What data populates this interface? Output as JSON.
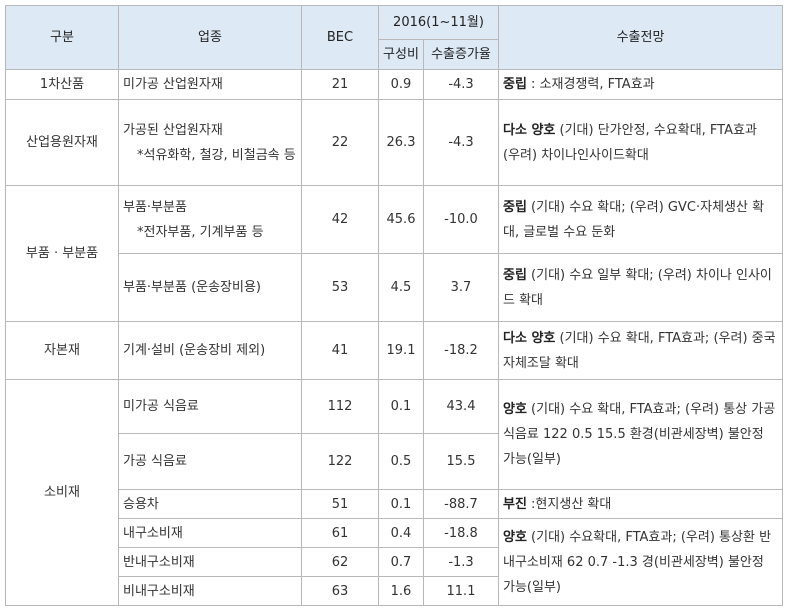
{
  "header": {
    "category": "구분",
    "industry": "업종",
    "bec": "BEC",
    "period": "2016(1~11월)",
    "share": "구성비",
    "growth": "수출증가율",
    "outlook": "수출전망"
  },
  "rows": [
    {
      "cat": "1차산품",
      "ind": "미가공 산업원자재",
      "sub": "",
      "bec": "21",
      "share": "0.9",
      "growth": "-4.3",
      "ob": "중립",
      "ot": " : 소재경쟁력, FTA효과"
    },
    {
      "cat": "산업용원자재",
      "ind": "가공된 산업원자재",
      "sub": "*석유화학, 철강, 비철금속 등",
      "bec": "22",
      "share": "26.3",
      "growth": "-4.3",
      "ob": "다소 양호",
      "ot": " (기대) 단가안정, 수요확대, FTA효과 (우려) 차이나인사이드확대"
    },
    {
      "cat": "부품 · 부분품",
      "ind": "부품·부분품",
      "sub": "*전자부품, 기계부품 등",
      "bec": "42",
      "share": "45.6",
      "growth": "-10.0",
      "ob": "중립",
      "ot": " (기대) 수요 확대; (우려) GVC·자체생산 확대, 글로벌 수요 둔화"
    },
    {
      "cat": "",
      "ind": "부품·부분품 (운송장비용)",
      "sub": "",
      "bec": "53",
      "share": "4.5",
      "growth": "3.7",
      "ob": "중립",
      "ot": " (기대) 수요 일부 확대; (우려) 차이나 인사이드 확대"
    },
    {
      "cat": "자본재",
      "ind": "기계·설비 (운송장비 제외)",
      "sub": "",
      "bec": "41",
      "share": "19.1",
      "growth": "-18.2",
      "ob": "다소 양호",
      "ot": " (기대) 수요 확대, FTA효과; (우려) 중국 자체조달 확대"
    },
    {
      "cat": "소비재",
      "ind": "미가공 식음료",
      "sub": "",
      "bec": "112",
      "share": "0.1",
      "growth": "43.4",
      "ob": "양호",
      "ot": " (기대) 수요 확대, FTA효과; (우려) 통상 가공 식음료 122 0.5 15.5 환경(비관세장벽) 불안정 가능(일부)"
    },
    {
      "cat": "",
      "ind": "가공 식음료",
      "sub": "",
      "bec": "122",
      "share": "0.5",
      "growth": "15.5",
      "ob": "",
      "ot": ""
    },
    {
      "cat": "",
      "ind": "승용차",
      "sub": "",
      "bec": "51",
      "share": "0.1",
      "growth": "-88.7",
      "ob": "부진",
      "ot": " :현지생산 확대"
    },
    {
      "cat": "",
      "ind": "내구소비재",
      "sub": "",
      "bec": "61",
      "share": "0.4",
      "growth": "-18.8",
      "ob": "양호",
      "ot": " (기대) 수요확대, FTA효과; (우려) 통상환 반내구소비재 62 0.7 -1.3 경(비관세장벽) 불안정 가능(일부)"
    },
    {
      "cat": "",
      "ind": "반내구소비재",
      "sub": "",
      "bec": "62",
      "share": "0.7",
      "growth": "-1.3",
      "ob": "",
      "ot": ""
    },
    {
      "cat": "",
      "ind": "비내구소비재",
      "sub": "",
      "bec": "63",
      "share": "1.6",
      "growth": "11.1",
      "ob": "",
      "ot": ""
    }
  ]
}
